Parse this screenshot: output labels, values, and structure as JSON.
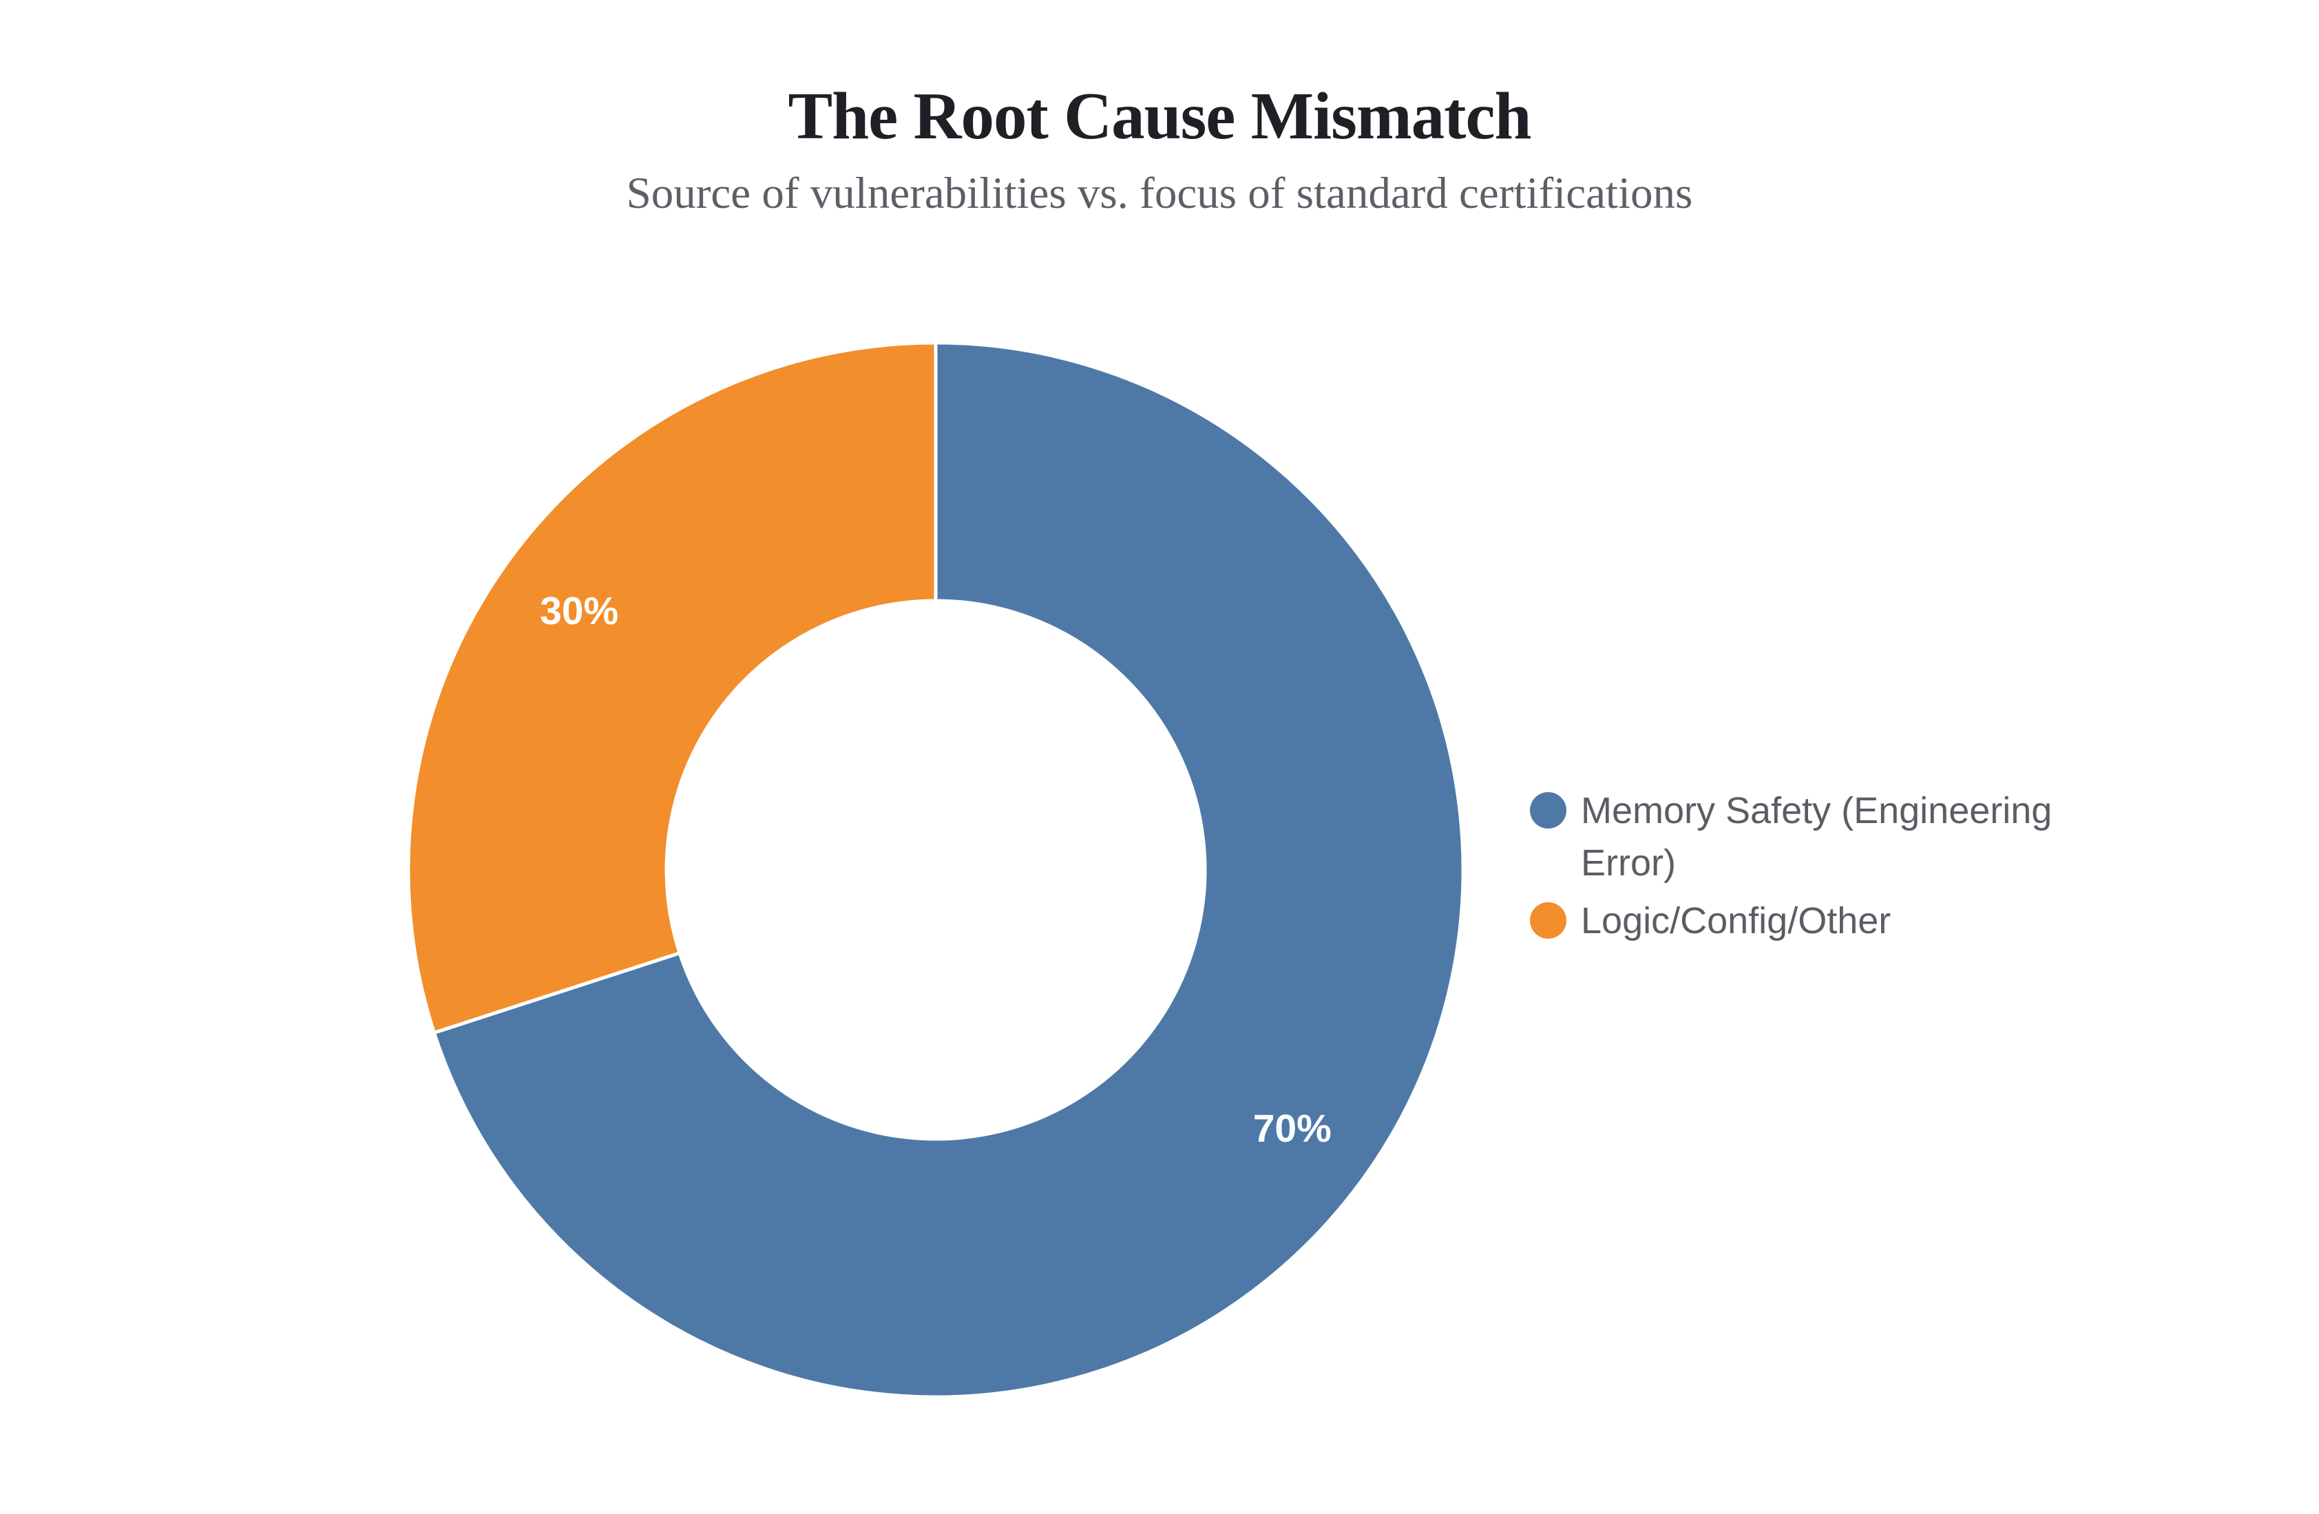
{
  "chart_data": {
    "type": "pie",
    "donut": true,
    "title": "The Root Cause Mismatch",
    "subtitle": "Source of vulnerabilities vs. focus of standard certifications",
    "order": "clockwise",
    "start_angle_deg": 0,
    "legend_position": "right",
    "segments": [
      {
        "label": "Memory Safety (Engineering Error)",
        "name": "memory-safety-engineering-error",
        "value": 70,
        "value_label": "70%",
        "color": "#4E79A7"
      },
      {
        "label": "Logic/Config/Other",
        "name": "logic-config-other",
        "value": 30,
        "value_label": "30%",
        "color": "#F28E2B"
      }
    ],
    "value_label_color": "#FFFFFF",
    "background_color": "#FFFFFF"
  }
}
